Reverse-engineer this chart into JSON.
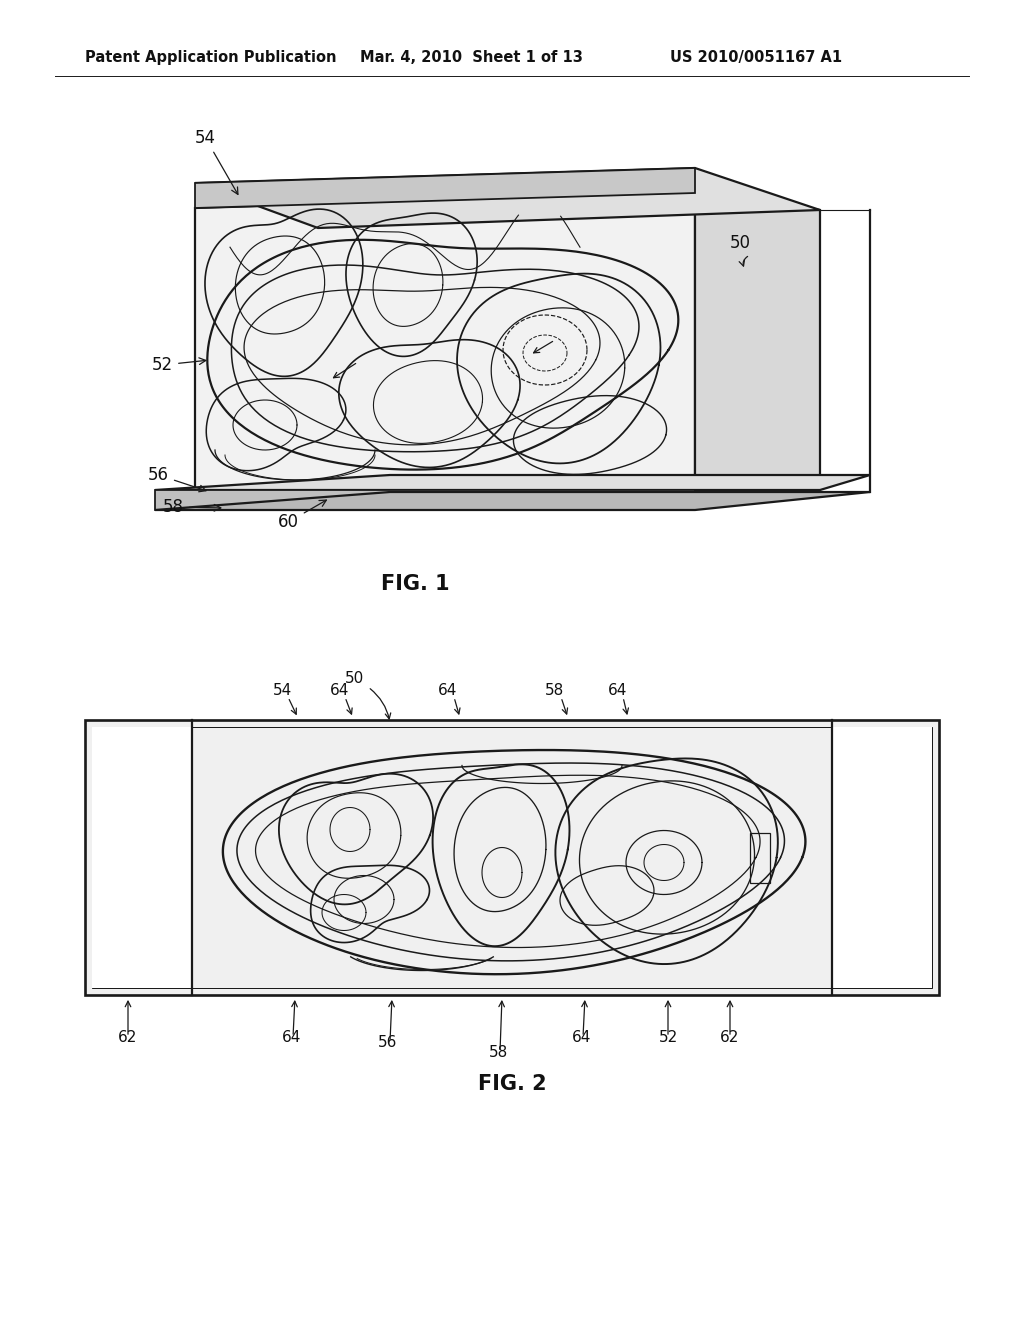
{
  "background_color": "#ffffff",
  "header_left": "Patent Application Publication",
  "header_mid": "Mar. 4, 2010  Sheet 1 of 13",
  "header_right": "US 2010/0051167 A1",
  "fig1_label": "FIG. 1",
  "fig2_label": "FIG. 2",
  "line_color": "#1a1a1a",
  "text_color": "#111111",
  "ref_fontsize": 12,
  "header_fontsize": 10.5,
  "figlabel_fontsize": 15
}
